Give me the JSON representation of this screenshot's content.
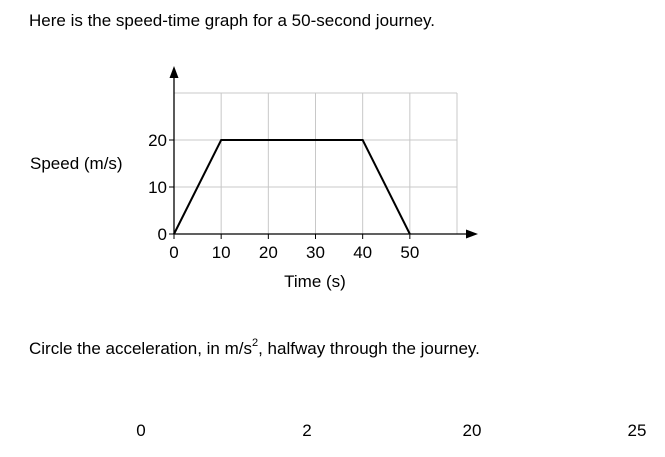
{
  "intro_text": "Here is the speed-time graph for a 50-second journey.",
  "question": {
    "before": "Circle the acceleration, in m/s",
    "superscript": "2",
    "after": ", halfway through the journey."
  },
  "options": [
    "0",
    "2",
    "20",
    "25"
  ],
  "chart_data": {
    "type": "line",
    "xlabel": "Time (s)",
    "ylabel": "Speed (m/s)",
    "x": [
      0,
      10,
      40,
      50
    ],
    "y": [
      0,
      20,
      20,
      0
    ],
    "xticks": [
      "0",
      "10",
      "20",
      "30",
      "40",
      "50"
    ],
    "yticks": [
      "0",
      "10",
      "20"
    ],
    "xlim": [
      0,
      60
    ],
    "ylim": [
      0,
      30
    ],
    "grid": true,
    "legend": "none"
  }
}
